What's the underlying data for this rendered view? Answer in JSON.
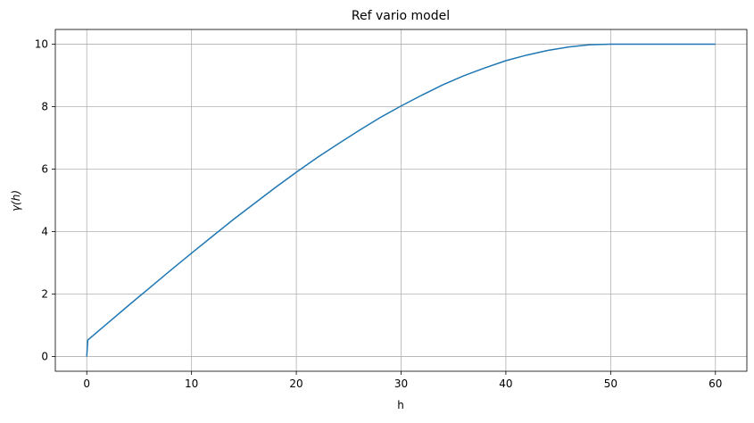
{
  "chart_data": {
    "type": "line",
    "title": "Ref vario model",
    "x_label": "h",
    "y_label": "γ(h)",
    "x": [
      0,
      0.1,
      2,
      4,
      6,
      8,
      10,
      12,
      14,
      16,
      18,
      20,
      22,
      24,
      26,
      28,
      30,
      32,
      34,
      36,
      38,
      40,
      42,
      44,
      46,
      48,
      50,
      55,
      60
    ],
    "series": [
      {
        "name": "γ(h)",
        "color": "#1f77b4",
        "values": [
          0,
          0.53,
          1.07,
          1.64,
          2.2,
          2.76,
          3.31,
          3.85,
          4.39,
          4.9,
          5.41,
          5.9,
          6.37,
          6.81,
          7.24,
          7.65,
          8.02,
          8.37,
          8.7,
          8.99,
          9.24,
          9.47,
          9.65,
          9.8,
          9.91,
          9.98,
          10,
          10,
          10
        ]
      }
    ],
    "xlim": [
      -3,
      63
    ],
    "xticks": [
      0,
      10,
      20,
      30,
      40,
      50,
      60
    ],
    "ylim": [
      -0.47,
      10.47
    ],
    "yticks": [
      0,
      2,
      4,
      6,
      8,
      10
    ],
    "grid": true
  }
}
